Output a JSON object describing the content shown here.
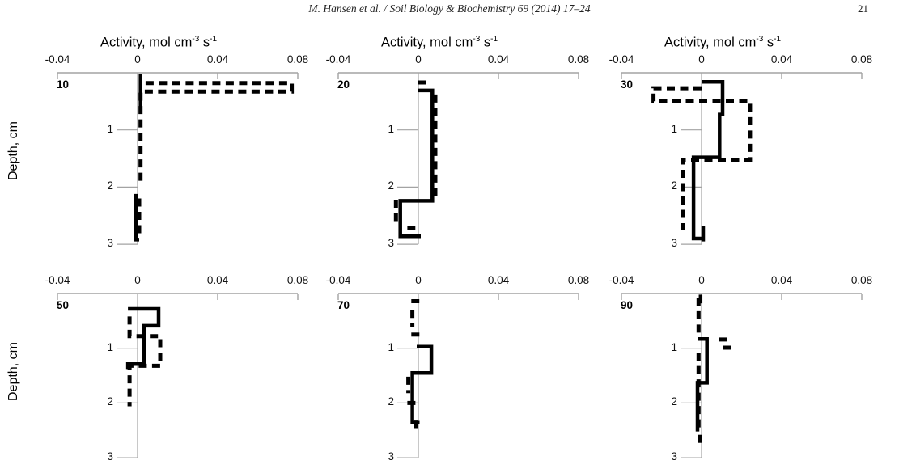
{
  "header": {
    "citation": "M. Hansen et al. / Soil Biology & Biochemistry 69 (2014) 17–24",
    "page_number": "21"
  },
  "axis": {
    "x_title_parts": {
      "pre": "Activity, mol cm",
      "sup1": "-3",
      "mid": " s",
      "sup2": "-1"
    },
    "x_tick_labels": [
      "-0.04",
      "0",
      "0.04",
      "0.08"
    ],
    "x_tick_values": [
      -0.04,
      0,
      0.04,
      0.08
    ],
    "y_label": "Depth, cm",
    "y_tick_labels": [
      "1",
      "2",
      "3"
    ],
    "x_range": [
      -0.04,
      0.08
    ],
    "y_range": [
      0,
      3
    ]
  },
  "colors": {
    "line": "#000000",
    "axis": "#a3a3a3",
    "text": "#1a1a1a"
  },
  "chart_data": {
    "type": "line",
    "title": "Activity, mol cm-3 s-1 depth profiles",
    "xlabel": "Activity, mol cm-3 s-1",
    "ylabel": "Depth, cm",
    "x_range": [
      -0.04,
      0.08
    ],
    "depth_range_cm": [
      0,
      3
    ],
    "grid": false,
    "legend": "none (solid and dashed step lines per panel)",
    "panels": [
      {
        "label": "10",
        "series": [
          {
            "style": "solid",
            "segments": [
              [
                [
                  0.0015,
                  0.02
                ],
                [
                  0.0015,
                  0.72
                ]
              ],
              [
                [
                  -0.0008,
                  2.12
                ],
                [
                  -0.0008,
                  2.92
                ],
                [
                  0.0008,
                  2.92
                ]
              ]
            ]
          },
          {
            "style": "dashed",
            "segments": [
              [
                [
                  0.004,
                  0.18
                ],
                [
                  0.077,
                  0.18
                ],
                [
                  0.077,
                  0.33
                ],
                [
                  0.0015,
                  0.33
                ],
                [
                  0.0015,
                  1.9
                ]
              ],
              [
                [
                  0.0008,
                  2.2
                ],
                [
                  0.0008,
                  2.82
                ]
              ]
            ]
          }
        ]
      },
      {
        "label": "20",
        "series": [
          {
            "style": "solid",
            "segments": [
              [
                [
                  0.0,
                  0.31
                ],
                [
                  0.007,
                  0.31
                ],
                [
                  0.007,
                  2.24
                ],
                [
                  -0.009,
                  2.24
                ],
                [
                  -0.009,
                  2.86
                ],
                [
                  0.0012,
                  2.86
                ]
              ]
            ]
          },
          {
            "style": "dashed",
            "segments": [
              [
                [
                  0.0,
                  0.17
                ],
                [
                  0.0045,
                  0.17
                ]
              ],
              [
                [
                  0.0085,
                  0.38
                ],
                [
                  0.0085,
                  2.18
                ]
              ],
              [
                [
                  -0.0112,
                  2.22
                ],
                [
                  -0.0112,
                  2.62
                ]
              ],
              [
                [
                  -0.0055,
                  2.71
                ],
                [
                  -0.0015,
                  2.71
                ]
              ]
            ]
          }
        ]
      },
      {
        "label": "30",
        "series": [
          {
            "style": "solid",
            "segments": [
              [
                [
                  0.0,
                  0.16
                ],
                [
                  0.0105,
                  0.16
                ],
                [
                  0.0105,
                  0.73
                ],
                [
                  0.009,
                  0.73
                ],
                [
                  0.009,
                  1.48
                ],
                [
                  -0.004,
                  1.48
                ],
                [
                  -0.004,
                  2.9
                ],
                [
                  0.0008,
                  2.9
                ]
              ],
              [
                [
                  0.0008,
                  2.68
                ],
                [
                  0.0008,
                  2.95
                ]
              ]
            ]
          },
          {
            "style": "dashed",
            "segments": [
              [
                [
                  0.0,
                  0.27
                ],
                [
                  -0.024,
                  0.27
                ],
                [
                  -0.024,
                  0.5
                ],
                [
                  0.0242,
                  0.5
                ],
                [
                  0.0242,
                  1.52
                ],
                [
                  -0.0095,
                  1.52
                ],
                [
                  -0.0095,
                  2.75
                ]
              ]
            ]
          }
        ]
      },
      {
        "label": "50",
        "series": [
          {
            "style": "solid",
            "segments": [
              [
                [
                  -0.0048,
                  0.28
                ],
                [
                  0.0105,
                  0.28
                ],
                [
                  0.0105,
                  0.59
                ],
                [
                  0.0032,
                  0.59
                ],
                [
                  0.0032,
                  1.29
                ],
                [
                  -0.0048,
                  1.29
                ],
                [
                  -0.0048,
                  1.38
                ]
              ]
            ]
          },
          {
            "style": "dashed",
            "segments": [
              [
                [
                  -0.004,
                  0.42
                ],
                [
                  -0.004,
                  0.78
                ],
                [
                  0.0113,
                  0.78
                ],
                [
                  0.0113,
                  1.32
                ],
                [
                  -0.004,
                  1.32
                ],
                [
                  -0.004,
                  2.06
                ]
              ]
            ]
          }
        ]
      },
      {
        "label": "70",
        "series": [
          {
            "style": "solid",
            "segments": [
              [
                [
                  -0.0008,
                  0.97
                ],
                [
                  0.0065,
                  0.97
                ],
                [
                  0.0065,
                  1.45
                ],
                [
                  -0.003,
                  1.45
                ],
                [
                  -0.003,
                  2.36
                ],
                [
                  0.0006,
                  2.36
                ]
              ]
            ]
          },
          {
            "style": "dashed",
            "segments": [
              [
                [
                  -0.0035,
                  0.14
                ],
                [
                  0.0005,
                  0.14
                ]
              ],
              [
                [
                  -0.003,
                  0.3
                ],
                [
                  -0.003,
                  0.62
                ]
              ],
              [
                [
                  -0.0035,
                  0.75
                ],
                [
                  0.0025,
                  0.75
                ]
              ],
              [
                [
                  -0.005,
                  1.52
                ],
                [
                  -0.005,
                  1.82
                ]
              ],
              [
                [
                  -0.0055,
                  2.0
                ],
                [
                  -0.0008,
                  2.0
                ]
              ],
              [
                [
                  -0.001,
                  2.32
                ],
                [
                  -0.001,
                  2.46
                ]
              ]
            ]
          }
        ]
      },
      {
        "label": "90",
        "series": [
          {
            "style": "solid",
            "segments": [
              [
                [
                  -0.0005,
                  0.02
                ],
                [
                  -0.0005,
                  0.18
                ]
              ],
              [
                [
                  -0.002,
                  0.83
                ],
                [
                  0.0027,
                  0.83
                ],
                [
                  0.0027,
                  1.63
                ],
                [
                  -0.002,
                  1.63
                ],
                [
                  -0.002,
                  2.52
                ]
              ]
            ]
          },
          {
            "style": "dashed",
            "segments": [
              [
                [
                  -0.0015,
                  0.08
                ],
                [
                  -0.0015,
                  0.78
                ]
              ],
              [
                [
                  0.0085,
                  0.84
                ],
                [
                  0.0128,
                  0.84
                ]
              ],
              [
                [
                  0.0105,
                  0.99
                ],
                [
                  0.0155,
                  0.99
                ]
              ],
              [
                [
                  -0.0015,
                  1.08
                ],
                [
                  -0.0015,
                  2.45
                ]
              ],
              [
                [
                  -0.001,
                  2.58
                ],
                [
                  -0.001,
                  2.75
                ]
              ]
            ]
          }
        ]
      }
    ]
  }
}
